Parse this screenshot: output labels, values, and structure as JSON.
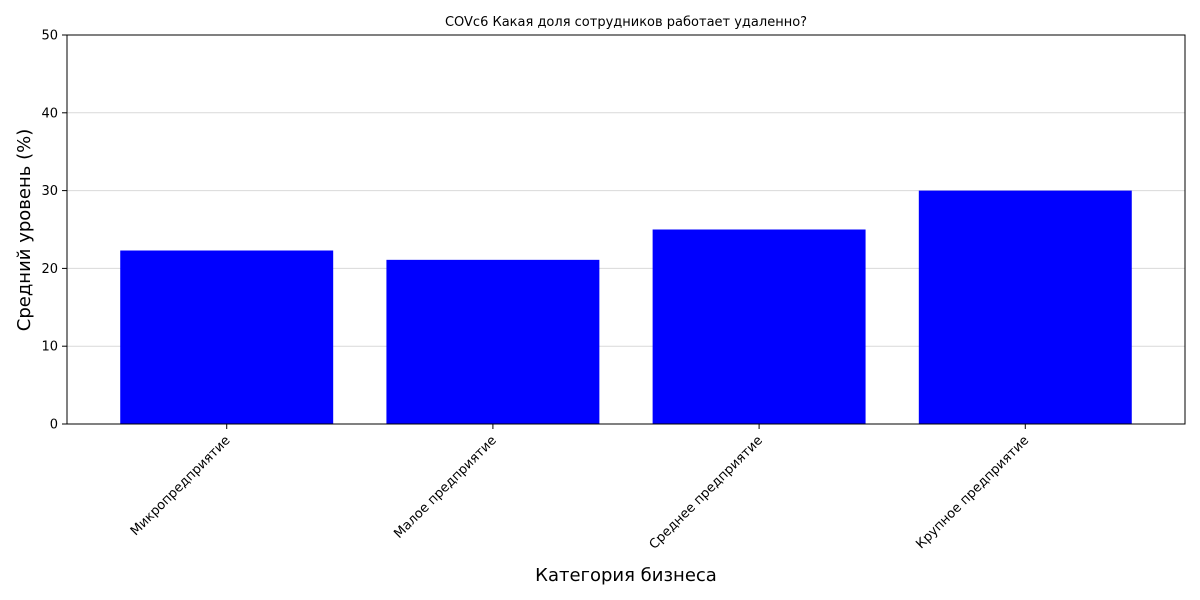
{
  "chart_data": {
    "type": "bar",
    "title": "COVc6 Какая доля сотрудников работает удаленно?",
    "xlabel": "Категория бизнеса",
    "ylabel": "Средний уровень (%)",
    "categories": [
      "Микропредприятие",
      "Малое предприятие",
      "Среднее предприятие",
      "Крупное предприятие"
    ],
    "values": [
      22.3,
      21.1,
      25.0,
      30.0
    ],
    "ylim": [
      0,
      50
    ],
    "yticks": [
      0,
      10,
      20,
      30,
      40,
      50
    ],
    "grid": "horizontal",
    "legend": "none",
    "bar_color": "#0000ff"
  }
}
